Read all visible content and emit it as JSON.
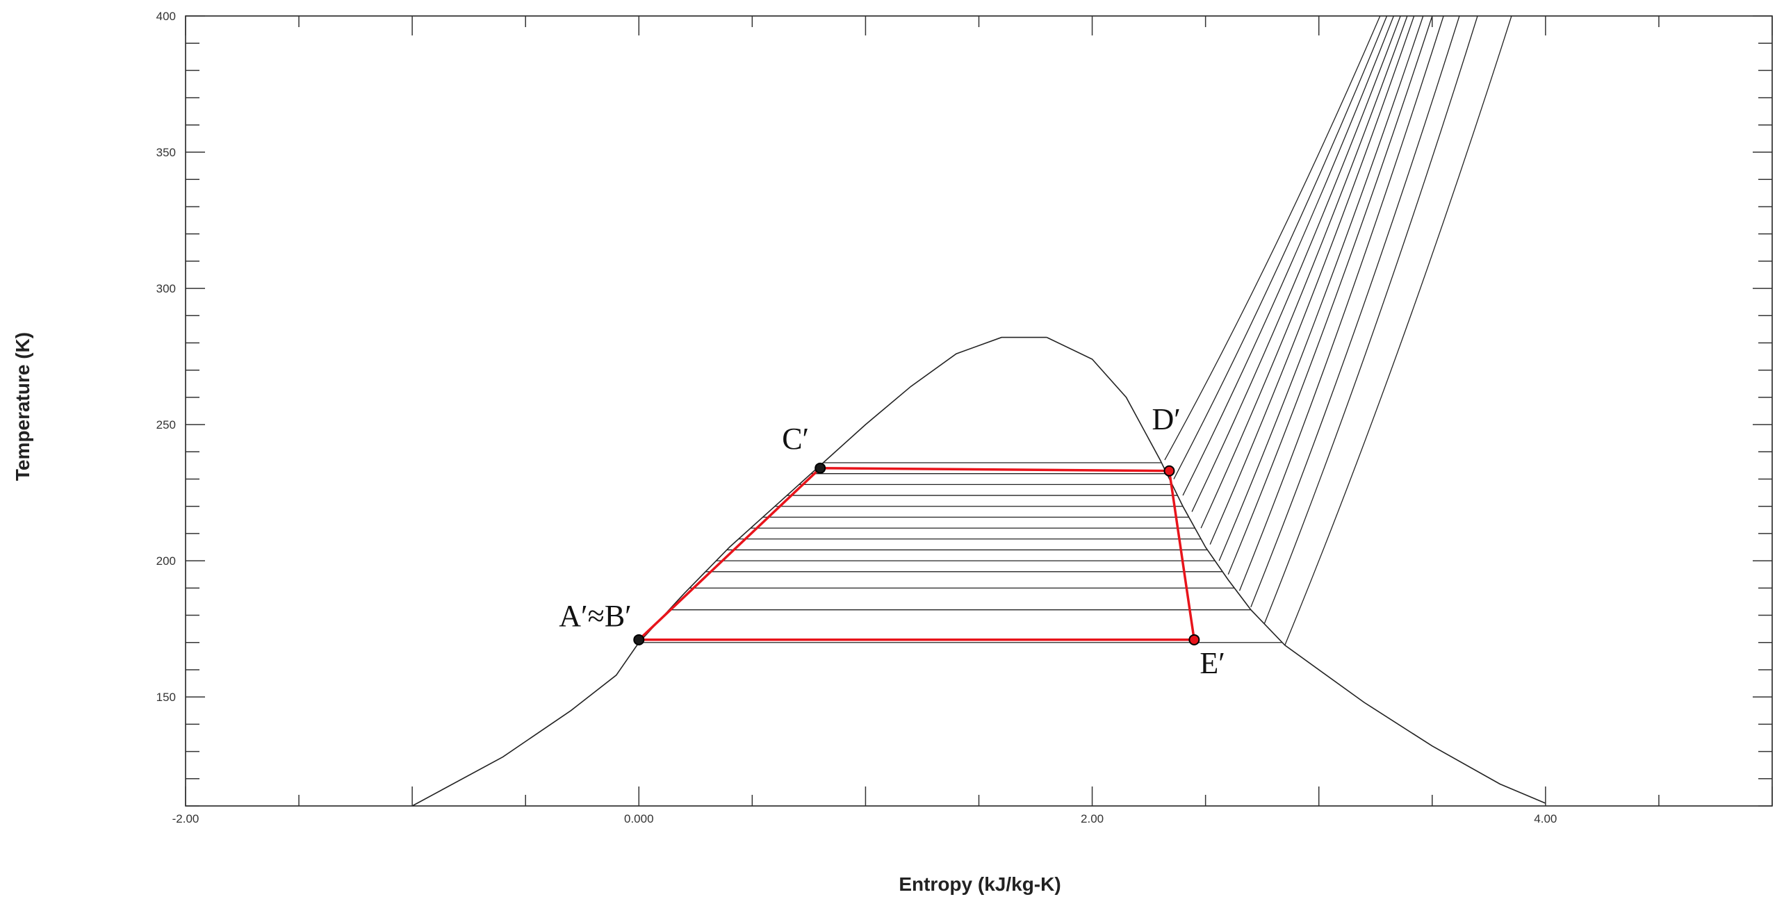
{
  "chart_data": {
    "type": "line",
    "title": "",
    "xlabel": "Entropy (kJ/kg-K)",
    "ylabel": "Temperature (K)",
    "xlim": [
      -2.0,
      5.0
    ],
    "ylim": [
      110,
      400
    ],
    "x_ticks": [
      {
        "value": -2.0,
        "label": "-2.00"
      },
      {
        "value": 0.0,
        "label": "0.000"
      },
      {
        "value": 2.0,
        "label": "2.00"
      },
      {
        "value": 4.0,
        "label": "4.00"
      }
    ],
    "y_ticks": [
      {
        "value": 150,
        "label": "150"
      },
      {
        "value": 200,
        "label": "200"
      },
      {
        "value": 250,
        "label": "250"
      },
      {
        "value": 300,
        "label": "300"
      },
      {
        "value": 350,
        "label": "350"
      },
      {
        "value": 400,
        "label": "400"
      }
    ],
    "grid": false,
    "colors": {
      "dome": "#222222",
      "cycle": "#e8141b",
      "points": "#111111"
    },
    "saturation_dome": {
      "liquid_line": [
        [
          -1.0,
          110
        ],
        [
          -0.6,
          128
        ],
        [
          -0.3,
          145
        ],
        [
          -0.1,
          158
        ],
        [
          0.0,
          170
        ],
        [
          0.2,
          188
        ],
        [
          0.4,
          205
        ],
        [
          0.6,
          220
        ],
        [
          0.8,
          235
        ],
        [
          1.0,
          250
        ],
        [
          1.2,
          264
        ],
        [
          1.4,
          276
        ],
        [
          1.6,
          282
        ],
        [
          1.8,
          282
        ]
      ],
      "vapor_line": [
        [
          1.8,
          282
        ],
        [
          2.0,
          274
        ],
        [
          2.15,
          260
        ],
        [
          2.3,
          237
        ],
        [
          2.4,
          220
        ],
        [
          2.5,
          205
        ],
        [
          2.6,
          193
        ],
        [
          2.7,
          182
        ],
        [
          2.85,
          169
        ],
        [
          3.2,
          148
        ],
        [
          3.5,
          132
        ],
        [
          3.8,
          118
        ],
        [
          4.0,
          111
        ]
      ]
    },
    "isotherms_T": [
      236,
      232,
      228,
      224,
      220,
      216,
      212,
      208,
      204,
      200,
      196,
      190,
      182,
      170
    ],
    "isobars_superheated": [
      [
        [
          2.32,
          237
        ],
        [
          3.27,
          400
        ]
      ],
      [
        [
          2.36,
          230
        ],
        [
          3.3,
          400
        ]
      ],
      [
        [
          2.4,
          224
        ],
        [
          3.33,
          400
        ]
      ],
      [
        [
          2.44,
          218
        ],
        [
          3.36,
          400
        ]
      ],
      [
        [
          2.48,
          212
        ],
        [
          3.39,
          400
        ]
      ],
      [
        [
          2.52,
          206
        ],
        [
          3.42,
          400
        ]
      ],
      [
        [
          2.56,
          200
        ],
        [
          3.46,
          400
        ]
      ],
      [
        [
          2.6,
          195
        ],
        [
          3.5,
          400
        ]
      ],
      [
        [
          2.65,
          189
        ],
        [
          3.55,
          400
        ]
      ],
      [
        [
          2.7,
          183
        ],
        [
          3.62,
          400
        ]
      ],
      [
        [
          2.76,
          177
        ],
        [
          3.7,
          400
        ]
      ],
      [
        [
          2.85,
          169
        ],
        [
          3.85,
          400
        ]
      ],
      [
        [
          3.45,
          400
        ],
        [
          3.45,
          400
        ]
      ]
    ],
    "cycle": [
      {
        "label": "A′≈B′",
        "s": 0.0,
        "T": 171
      },
      {
        "label": "C′",
        "s": 0.8,
        "T": 234
      },
      {
        "label": "D′",
        "s": 2.34,
        "T": 233
      },
      {
        "label": "E′",
        "s": 2.45,
        "T": 171
      }
    ]
  }
}
